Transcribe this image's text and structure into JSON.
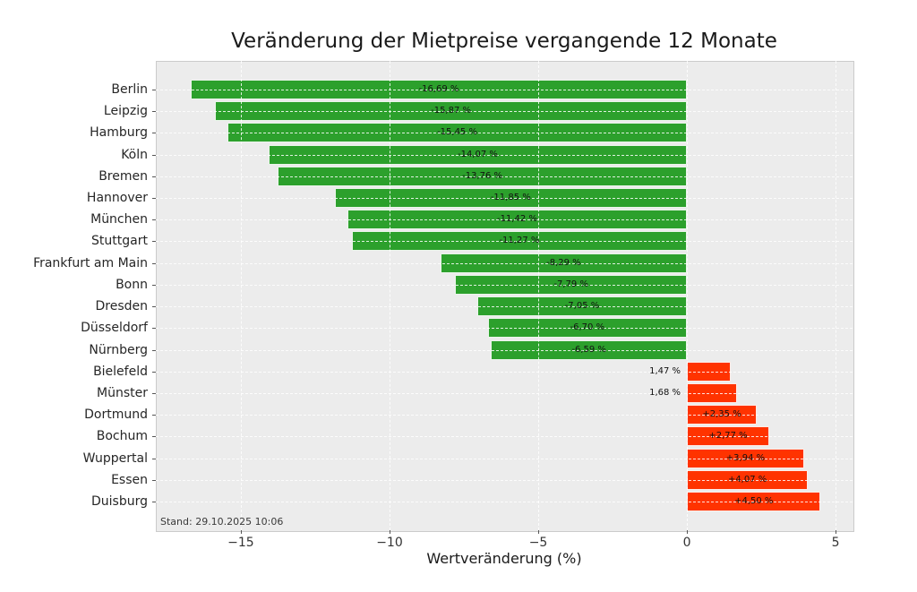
{
  "title": "Veränderung der Mietpreise vergangende 12 Monate",
  "annotation": "Stand: 29.10.2025 10:06",
  "chart_data": {
    "type": "bar",
    "orientation": "horizontal",
    "title": "Veränderung der Mietpreise vergangende 12 Monate",
    "xlabel": "Wertveränderung (%)",
    "ylabel": "",
    "xlim": [
      -17.86,
      5.57
    ],
    "grid": true,
    "grid_style": "dashed-white-over-bars",
    "legend": "none",
    "categories": [
      "Berlin",
      "Leipzig",
      "Hamburg",
      "Köln",
      "Bremen",
      "Hannover",
      "München",
      "Stuttgart",
      "Frankfurt am Main",
      "Bonn",
      "Dresden",
      "Düsseldorf",
      "Nürnberg",
      "Bielefeld",
      "Münster",
      "Dortmund",
      "Bochum",
      "Wuppertal",
      "Essen",
      "Duisburg"
    ],
    "values": [
      -16.69,
      -15.87,
      -15.45,
      -14.07,
      -13.76,
      -11.85,
      -11.42,
      -11.27,
      -8.29,
      -7.79,
      -7.05,
      -6.7,
      -6.59,
      1.47,
      1.68,
      2.35,
      2.77,
      3.94,
      4.07,
      4.5
    ],
    "bar_labels": [
      "-16,69 %",
      "-15,87 %",
      "-15,45 %",
      "-14,07 %",
      "-13,76 %",
      "-11,85 %",
      "-11,42 %",
      "-11,27 %",
      "-8,29 %",
      "-7,79 %",
      "-7,05 %",
      "-6,70 %",
      "-6,59 %",
      "1,47 %",
      "1,68 %",
      "+2,35 %",
      "+2,77 %",
      "+3,94 %",
      "+4,07 %",
      "+4,50 %"
    ],
    "bar_label_placement": [
      "inside",
      "inside",
      "inside",
      "inside",
      "inside",
      "inside",
      "inside",
      "inside",
      "inside",
      "inside",
      "inside",
      "inside",
      "inside",
      "outside",
      "outside",
      "inside",
      "inside",
      "inside",
      "inside",
      "inside"
    ],
    "x_ticks": {
      "values": [
        -15,
        -10,
        -5,
        0,
        5
      ],
      "labels": [
        "−15",
        "−10",
        "−5",
        "0",
        "5"
      ]
    },
    "colors": {
      "negative_bar": "#2ca02c",
      "positive_bar": "#ff3300",
      "plot_background": "#ececec",
      "figure_background": "#ffffff",
      "grid": "#ffffff",
      "spine": "#cbcbcb",
      "text": "#1a1a1a"
    },
    "annotation": "Stand: 29.10.2025 10:06"
  }
}
